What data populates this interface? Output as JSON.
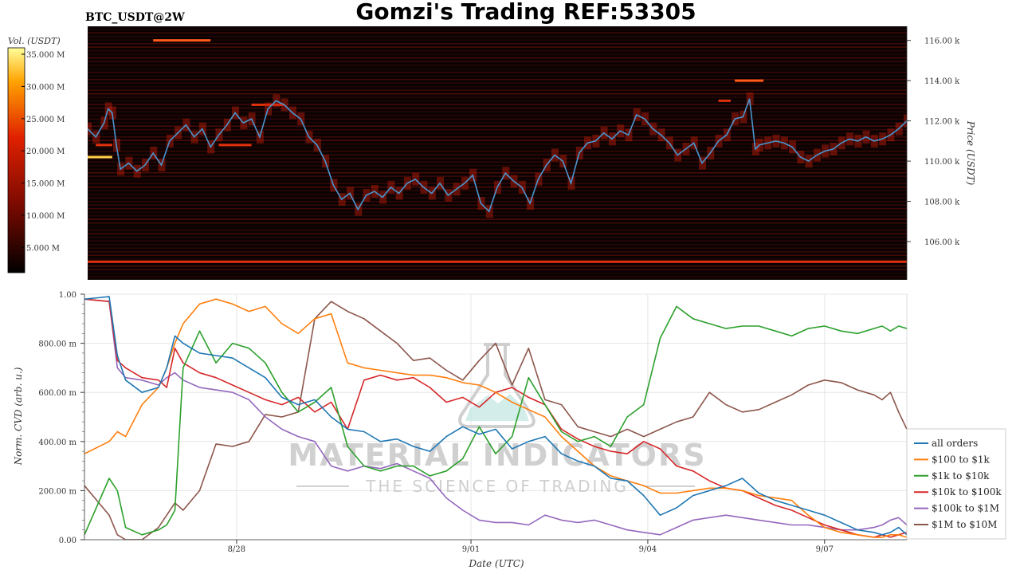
{
  "title": "Gomzi's Trading REF:53305",
  "symbol": "BTC_USDT@2W",
  "watermark": {
    "main": "MATERIAL INDICATORS",
    "tagline": "THE SCIENCE OF TRADING"
  },
  "colorbar": {
    "label": "Vol. (USDT)",
    "ticks": [
      "35.000 M",
      "30.000 M",
      "25.000 M",
      "20.000 M",
      "15.000 M",
      "10.000 M",
      "5.000 M"
    ]
  },
  "colors": {
    "price": "#4a95cf",
    "heat_bg": "#0b0303",
    "all_orders": "#1f77b4",
    "s100_1k": "#ff7f0e",
    "s1k_10k": "#2ca02c",
    "s10k_100k": "#d62728",
    "s100k_1m": "#9467bd",
    "s1m_10m": "#8c564b"
  },
  "chart_data": [
    {
      "type": "heatmap",
      "ylabel": "Price (USDT)",
      "y_ticks": [
        {
          "v": 106,
          "label": "106.00 k"
        },
        {
          "v": 108,
          "label": "108.00 k"
        },
        {
          "v": 110,
          "label": "110.00 k"
        },
        {
          "v": 112,
          "label": "112.00 k"
        },
        {
          "v": 114,
          "label": "114.00 k"
        },
        {
          "v": 116,
          "label": "116.00 k"
        }
      ],
      "ylim": [
        104.1,
        116.7
      ],
      "xlim": [
        0,
        100
      ],
      "price_series": [
        [
          0,
          111.6
        ],
        [
          1,
          111.2
        ],
        [
          2,
          111.9
        ],
        [
          2.5,
          112.6
        ],
        [
          3,
          112.4
        ],
        [
          3.5,
          110.8
        ],
        [
          4,
          109.6
        ],
        [
          5,
          109.9
        ],
        [
          6,
          109.5
        ],
        [
          7,
          109.8
        ],
        [
          8,
          110.4
        ],
        [
          9,
          109.8
        ],
        [
          10,
          111.0
        ],
        [
          11,
          111.4
        ],
        [
          12,
          111.8
        ],
        [
          13,
          111.2
        ],
        [
          14,
          111.6
        ],
        [
          15,
          110.7
        ],
        [
          16,
          111.3
        ],
        [
          17,
          111.8
        ],
        [
          18,
          112.4
        ],
        [
          19,
          111.9
        ],
        [
          20,
          112.1
        ],
        [
          21,
          111.2
        ],
        [
          22,
          112.6
        ],
        [
          23,
          113.0
        ],
        [
          24,
          112.8
        ],
        [
          25,
          112.4
        ],
        [
          26,
          112.1
        ],
        [
          27,
          111.2
        ],
        [
          28,
          110.8
        ],
        [
          29,
          110.0
        ],
        [
          30,
          108.8
        ],
        [
          31,
          108.1
        ],
        [
          32,
          108.4
        ],
        [
          33,
          107.6
        ],
        [
          34,
          108.3
        ],
        [
          35,
          108.5
        ],
        [
          36,
          108.2
        ],
        [
          37,
          108.7
        ],
        [
          38,
          108.4
        ],
        [
          39,
          108.9
        ],
        [
          40,
          109.1
        ],
        [
          41,
          108.7
        ],
        [
          42,
          108.4
        ],
        [
          43,
          108.9
        ],
        [
          44,
          108.3
        ],
        [
          45,
          108.6
        ],
        [
          46,
          108.9
        ],
        [
          47,
          109.3
        ],
        [
          48,
          107.9
        ],
        [
          49,
          107.5
        ],
        [
          50,
          108.7
        ],
        [
          51,
          109.4
        ],
        [
          52,
          109.0
        ],
        [
          53,
          108.7
        ],
        [
          54,
          107.9
        ],
        [
          55,
          109.1
        ],
        [
          56,
          109.8
        ],
        [
          57,
          110.3
        ],
        [
          58,
          110.0
        ],
        [
          59,
          108.9
        ],
        [
          60,
          110.4
        ],
        [
          61,
          110.9
        ],
        [
          62,
          111.0
        ],
        [
          63,
          111.4
        ],
        [
          64,
          111.1
        ],
        [
          65,
          111.5
        ],
        [
          66,
          111.3
        ],
        [
          67,
          112.3
        ],
        [
          68,
          112.1
        ],
        [
          69,
          111.6
        ],
        [
          70,
          111.3
        ],
        [
          71,
          110.9
        ],
        [
          72,
          110.3
        ],
        [
          73,
          110.6
        ],
        [
          74,
          110.9
        ],
        [
          75,
          109.9
        ],
        [
          76,
          110.4
        ],
        [
          77,
          111.0
        ],
        [
          78,
          111.3
        ],
        [
          79,
          112.1
        ],
        [
          80,
          112.2
        ],
        [
          80.8,
          113.1
        ],
        [
          81.5,
          110.6
        ],
        [
          82,
          110.8
        ],
        [
          83,
          110.9
        ],
        [
          84,
          111.0
        ],
        [
          85,
          110.9
        ],
        [
          86,
          110.7
        ],
        [
          87,
          110.2
        ],
        [
          88,
          110.0
        ],
        [
          89,
          110.3
        ],
        [
          90,
          110.5
        ],
        [
          91,
          110.6
        ],
        [
          92,
          110.9
        ],
        [
          93,
          111.1
        ],
        [
          94,
          111.0
        ],
        [
          95,
          111.2
        ],
        [
          96,
          111.0
        ],
        [
          97,
          111.1
        ],
        [
          98,
          111.3
        ],
        [
          99,
          111.6
        ],
        [
          100,
          112.0
        ]
      ],
      "liquidity_bands": [
        {
          "y": 105.0,
          "x0": 0,
          "x1": 100,
          "level": 0.85
        },
        {
          "y": 116.0,
          "x0": 8,
          "x1": 15,
          "level": 0.9
        },
        {
          "y": 114.0,
          "x0": 79,
          "x1": 82.5,
          "level": 0.95
        },
        {
          "y": 110.8,
          "x0": 1,
          "x1": 3,
          "level": 0.75
        },
        {
          "y": 110.2,
          "x0": 0,
          "x1": 3,
          "level": 1.0
        },
        {
          "y": 110.8,
          "x0": 16,
          "x1": 20,
          "level": 0.75
        },
        {
          "y": 112.8,
          "x0": 20,
          "x1": 24,
          "level": 0.8
        },
        {
          "y": 113.0,
          "x0": 77,
          "x1": 78.5,
          "level": 0.8
        }
      ]
    },
    {
      "type": "line",
      "xlabel": "Date (UTC)",
      "ylabel": "Norm. CVD (arb. u.)",
      "x_ticks": [
        {
          "v": 18.5,
          "label": "8/28"
        },
        {
          "v": 47,
          "label": "9/01"
        },
        {
          "v": 68.5,
          "label": "9/04"
        },
        {
          "v": 90,
          "label": "9/07"
        }
      ],
      "y_ticks": [
        {
          "v": 0,
          "label": "0.00"
        },
        {
          "v": 0.2,
          "label": "200.00 m"
        },
        {
          "v": 0.4,
          "label": "400.00 m"
        },
        {
          "v": 0.6,
          "label": "600.00 m"
        },
        {
          "v": 0.8,
          "label": "800.00 m"
        },
        {
          "v": 1.0,
          "label": "1.00"
        }
      ],
      "ylim": [
        0,
        1.0
      ],
      "xlim": [
        0,
        100
      ],
      "x": [
        0,
        3,
        4,
        5,
        7,
        9,
        10,
        11,
        12,
        14,
        16,
        18,
        20,
        22,
        24,
        26,
        28,
        30,
        32,
        34,
        36,
        38,
        40,
        42,
        44,
        46,
        48,
        50,
        52,
        54,
        56,
        58,
        60,
        62,
        64,
        66,
        68,
        70,
        72,
        74,
        76,
        78,
        80,
        82,
        84,
        86,
        88,
        90,
        92,
        94,
        96,
        97,
        98,
        99,
        100
      ],
      "series": [
        {
          "name": "all orders",
          "key": "all_orders",
          "values": [
            0.98,
            0.99,
            0.75,
            0.65,
            0.6,
            0.62,
            0.7,
            0.83,
            0.8,
            0.76,
            0.75,
            0.74,
            0.7,
            0.66,
            0.58,
            0.55,
            0.57,
            0.5,
            0.45,
            0.44,
            0.4,
            0.41,
            0.38,
            0.36,
            0.42,
            0.46,
            0.43,
            0.45,
            0.37,
            0.4,
            0.42,
            0.35,
            0.32,
            0.3,
            0.25,
            0.24,
            0.18,
            0.1,
            0.13,
            0.18,
            0.2,
            0.22,
            0.25,
            0.19,
            0.16,
            0.14,
            0.12,
            0.1,
            0.07,
            0.04,
            0.03,
            0.02,
            0.03,
            0.05,
            0.02
          ]
        },
        {
          "name": "$100 to $1k",
          "key": "s100_1k",
          "values": [
            0.35,
            0.4,
            0.44,
            0.42,
            0.55,
            0.62,
            0.7,
            0.8,
            0.88,
            0.96,
            0.98,
            0.96,
            0.93,
            0.95,
            0.88,
            0.84,
            0.9,
            0.92,
            0.72,
            0.7,
            0.69,
            0.68,
            0.67,
            0.67,
            0.66,
            0.64,
            0.63,
            0.6,
            0.56,
            0.53,
            0.5,
            0.42,
            0.36,
            0.3,
            0.26,
            0.24,
            0.22,
            0.19,
            0.19,
            0.2,
            0.21,
            0.21,
            0.2,
            0.18,
            0.17,
            0.16,
            0.1,
            0.05,
            0.03,
            0.02,
            0.01,
            0.01,
            0.02,
            0.02,
            0.01
          ]
        },
        {
          "name": "$1k to $10k",
          "key": "s1k_10k",
          "values": [
            0.02,
            0.25,
            0.2,
            0.05,
            0.02,
            0.04,
            0.06,
            0.12,
            0.7,
            0.85,
            0.72,
            0.8,
            0.78,
            0.72,
            0.6,
            0.52,
            0.56,
            0.62,
            0.38,
            0.3,
            0.28,
            0.3,
            0.3,
            0.26,
            0.28,
            0.33,
            0.46,
            0.35,
            0.42,
            0.66,
            0.55,
            0.44,
            0.4,
            0.42,
            0.38,
            0.5,
            0.55,
            0.82,
            0.95,
            0.9,
            0.88,
            0.86,
            0.87,
            0.87,
            0.85,
            0.83,
            0.86,
            0.87,
            0.85,
            0.84,
            0.86,
            0.87,
            0.85,
            0.87,
            0.86
          ]
        },
        {
          "name": "$10k to $100k",
          "key": "s10k_100k",
          "values": [
            0.98,
            0.97,
            0.73,
            0.7,
            0.66,
            0.65,
            0.62,
            0.78,
            0.72,
            0.68,
            0.66,
            0.63,
            0.6,
            0.57,
            0.55,
            0.58,
            0.52,
            0.56,
            0.45,
            0.65,
            0.67,
            0.65,
            0.66,
            0.62,
            0.56,
            0.58,
            0.54,
            0.6,
            0.62,
            0.58,
            0.55,
            0.45,
            0.41,
            0.38,
            0.36,
            0.35,
            0.4,
            0.37,
            0.3,
            0.28,
            0.24,
            0.21,
            0.2,
            0.17,
            0.14,
            0.12,
            0.09,
            0.06,
            0.04,
            0.02,
            0.01,
            0.02,
            0.01,
            0.02,
            0.03
          ]
        },
        {
          "name": "$100k to $1M",
          "key": "s100k_1m",
          "values": [
            0.98,
            0.97,
            0.7,
            0.66,
            0.65,
            0.63,
            0.66,
            0.68,
            0.65,
            0.62,
            0.61,
            0.6,
            0.57,
            0.5,
            0.45,
            0.42,
            0.4,
            0.3,
            0.28,
            0.3,
            0.29,
            0.31,
            0.28,
            0.25,
            0.17,
            0.12,
            0.08,
            0.07,
            0.07,
            0.06,
            0.1,
            0.08,
            0.07,
            0.08,
            0.06,
            0.04,
            0.03,
            0.02,
            0.05,
            0.08,
            0.09,
            0.1,
            0.09,
            0.08,
            0.07,
            0.06,
            0.06,
            0.05,
            0.04,
            0.04,
            0.05,
            0.06,
            0.08,
            0.09,
            0.06
          ]
        },
        {
          "name": "$1M to $10M",
          "key": "s1m_10m",
          "values": [
            0.22,
            0.1,
            0.02,
            0.0,
            0.0,
            0.05,
            0.1,
            0.15,
            0.12,
            0.2,
            0.39,
            0.38,
            0.4,
            0.51,
            0.5,
            0.52,
            0.9,
            0.97,
            0.93,
            0.9,
            0.85,
            0.8,
            0.73,
            0.74,
            0.69,
            0.65,
            0.73,
            0.8,
            0.63,
            0.78,
            0.57,
            0.55,
            0.46,
            0.44,
            0.42,
            0.45,
            0.42,
            0.45,
            0.48,
            0.5,
            0.6,
            0.55,
            0.52,
            0.53,
            0.56,
            0.59,
            0.63,
            0.65,
            0.64,
            0.61,
            0.59,
            0.57,
            0.6,
            0.52,
            0.45
          ]
        }
      ],
      "legend": "right"
    }
  ]
}
